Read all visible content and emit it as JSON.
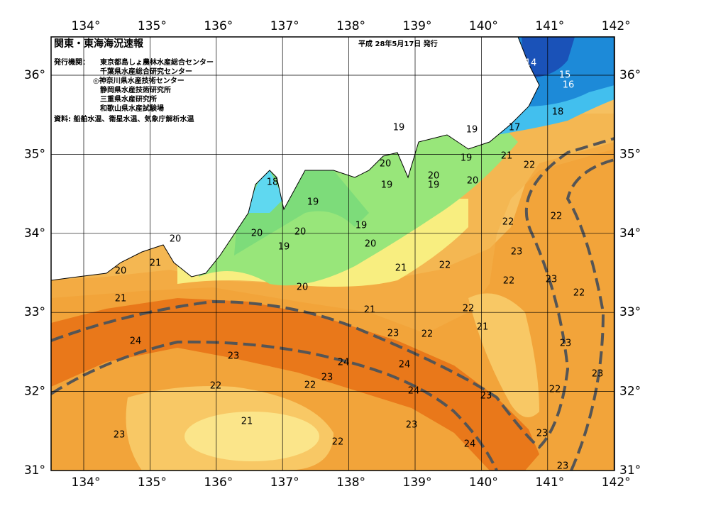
{
  "header": {
    "title": "関東・東海海況速報",
    "issued": "平成 28年5月17日 発行",
    "issuers_label": "発行機関：",
    "issuers": [
      "東京都島しょ農林水産総合センター",
      "千葉県水産総合研究センター",
      "◎神奈川県水産技術センター",
      "静岡県水産技術研究所",
      "三重県水産研究所",
      "和歌山県水産試験場"
    ],
    "source": "資料: 船舶水温、衛星水温、気象庁解析水温"
  },
  "axes": {
    "longitude": [
      "134°",
      "135°",
      "136°",
      "137°",
      "138°",
      "139°",
      "140°",
      "141°",
      "142°"
    ],
    "latitude": [
      "31°",
      "32°",
      "33°",
      "34°",
      "35°",
      "36°"
    ]
  },
  "isotherm_labels": [
    14,
    15,
    16,
    18,
    17,
    19,
    19,
    21,
    22,
    19,
    20,
    20,
    19,
    20,
    19,
    18,
    19,
    22,
    22,
    20,
    20,
    19,
    20,
    20,
    19,
    23,
    21,
    20,
    21,
    22,
    23,
    22,
    22,
    20,
    21,
    22,
    21,
    21,
    23,
    22,
    24,
    23,
    23,
    24,
    24,
    23,
    23,
    22,
    22,
    24,
    22,
    23,
    21,
    23,
    23,
    23,
    22,
    24,
    23
  ]
}
